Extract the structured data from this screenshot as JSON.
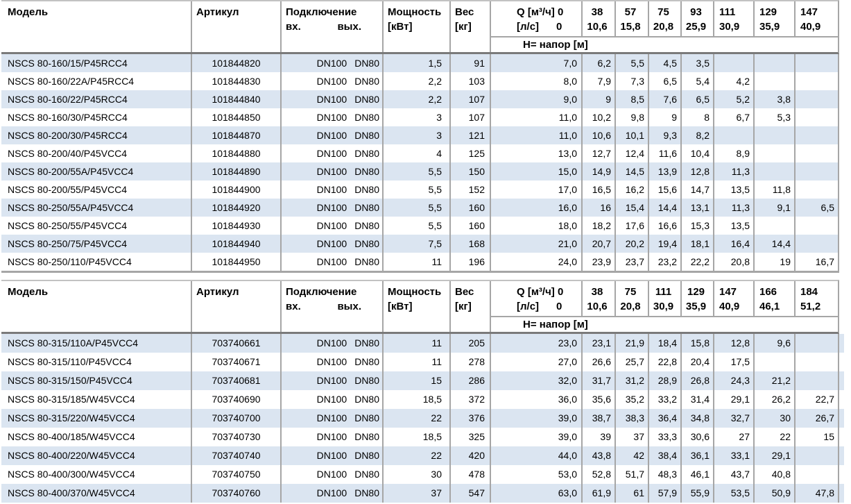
{
  "colors": {
    "stripe_row": "#dbe5f1",
    "grid_line": "#a6a6a6",
    "header_rule": "#7a7a7a",
    "text": "#000000",
    "background": "#ffffff"
  },
  "tables": [
    {
      "columns": {
        "model": "Модель",
        "article": "Артикул",
        "connection": "Подключение",
        "connection_in": "вх.",
        "connection_out": "вых.",
        "power_line1": "Мощность",
        "power_line2": "[кВт]",
        "weight_line1": "Вес",
        "weight_line2": "[кг]",
        "q_line1": "Q [м³/ч] 0",
        "q_line2": "[л/с]      0",
        "head_label": "H= напор [м]"
      },
      "flow_headers": [
        [
          "38",
          "10,6"
        ],
        [
          "57",
          "15,8"
        ],
        [
          "75",
          "20,8"
        ],
        [
          "93",
          "25,9"
        ],
        [
          "111",
          "30,9"
        ],
        [
          "129",
          "35,9"
        ],
        [
          "147",
          "40,9"
        ]
      ],
      "rows": [
        {
          "model": "NSCS 80-160/15/P45RCC4",
          "article": "101844820",
          "inlet": "DN100",
          "outlet": "DN80",
          "power": "1,5",
          "weight": "91",
          "head": [
            "7,0",
            "6,2",
            "5,5",
            "4,5",
            "3,5",
            "",
            "",
            ""
          ]
        },
        {
          "model": "NSCS 80-160/22A/P45RCC4",
          "article": "101844830",
          "inlet": "DN100",
          "outlet": "DN80",
          "power": "2,2",
          "weight": "103",
          "head": [
            "8,0",
            "7,9",
            "7,3",
            "6,5",
            "5,4",
            "4,2",
            "",
            ""
          ]
        },
        {
          "model": "NSCS 80-160/22/P45RCC4",
          "article": "101844840",
          "inlet": "DN100",
          "outlet": "DN80",
          "power": "2,2",
          "weight": "107",
          "head": [
            "9,0",
            "9",
            "8,5",
            "7,6",
            "6,5",
            "5,2",
            "3,8",
            ""
          ]
        },
        {
          "model": "NSCS 80-160/30/P45RCC4",
          "article": "101844850",
          "inlet": "DN100",
          "outlet": "DN80",
          "power": "3",
          "weight": "107",
          "head": [
            "11,0",
            "10,2",
            "9,8",
            "9",
            "8",
            "6,7",
            "5,3",
            ""
          ]
        },
        {
          "model": "NSCS 80-200/30/P45RCC4",
          "article": "101844870",
          "inlet": "DN100",
          "outlet": "DN80",
          "power": "3",
          "weight": "121",
          "head": [
            "11,0",
            "10,6",
            "10,1",
            "9,3",
            "8,2",
            "",
            "",
            ""
          ]
        },
        {
          "model": "NSCS 80-200/40/P45VCC4",
          "article": "101844880",
          "inlet": "DN100",
          "outlet": "DN80",
          "power": "4",
          "weight": "125",
          "head": [
            "13,0",
            "12,7",
            "12,4",
            "11,6",
            "10,4",
            "8,9",
            "",
            ""
          ]
        },
        {
          "model": "NSCS 80-200/55A/P45VCC4",
          "article": "101844890",
          "inlet": "DN100",
          "outlet": "DN80",
          "power": "5,5",
          "weight": "150",
          "head": [
            "15,0",
            "14,9",
            "14,5",
            "13,9",
            "12,8",
            "11,3",
            "",
            ""
          ]
        },
        {
          "model": "NSCS 80-200/55/P45VCC4",
          "article": "101844900",
          "inlet": "DN100",
          "outlet": "DN80",
          "power": "5,5",
          "weight": "152",
          "head": [
            "17,0",
            "16,5",
            "16,2",
            "15,6",
            "14,7",
            "13,5",
            "11,8",
            ""
          ]
        },
        {
          "model": "NSCS 80-250/55A/P45VCC4",
          "article": "101844920",
          "inlet": "DN100",
          "outlet": "DN80",
          "power": "5,5",
          "weight": "160",
          "head": [
            "16,0",
            "16",
            "15,4",
            "14,4",
            "13,1",
            "11,3",
            "9,1",
            "6,5"
          ]
        },
        {
          "model": "NSCS 80-250/55/P45VCC4",
          "article": "101844930",
          "inlet": "DN100",
          "outlet": "DN80",
          "power": "5,5",
          "weight": "160",
          "head": [
            "18,0",
            "18,2",
            "17,6",
            "16,6",
            "15,3",
            "13,5",
            "",
            ""
          ]
        },
        {
          "model": "NSCS 80-250/75/P45VCC4",
          "article": "101844940",
          "inlet": "DN100",
          "outlet": "DN80",
          "power": "7,5",
          "weight": "168",
          "head": [
            "21,0",
            "20,7",
            "20,2",
            "19,4",
            "18,1",
            "16,4",
            "14,4",
            ""
          ]
        },
        {
          "model": "NSCS 80-250/110/P45VCC4",
          "article": "101844950",
          "inlet": "DN100",
          "outlet": "DN80",
          "power": "11",
          "weight": "196",
          "head": [
            "24,0",
            "23,9",
            "23,7",
            "23,2",
            "22,2",
            "20,8",
            "19",
            "16,7"
          ]
        }
      ]
    },
    {
      "columns": {
        "model": "Модель",
        "article": "Артикул",
        "connection": "Подключение",
        "connection_in": "вх.",
        "connection_out": "вых.",
        "power_line1": "Мощность",
        "power_line2": "[кВт]",
        "weight_line1": "Вес",
        "weight_line2": "[кг]",
        "q_line1": "Q [м³/ч] 0",
        "q_line2": "[л/с]      0",
        "head_label": "H= напор [м]"
      },
      "flow_headers": [
        [
          "38",
          "10,6"
        ],
        [
          "75",
          "20,8"
        ],
        [
          "111",
          "30,9"
        ],
        [
          "129",
          "35,9"
        ],
        [
          "147",
          "40,9"
        ],
        [
          "166",
          "46,1"
        ],
        [
          "184",
          "51,2"
        ]
      ],
      "rows": [
        {
          "model": "NSCS 80-315/110A/P45VCC4",
          "article": "703740661",
          "inlet": "DN100",
          "outlet": "DN80",
          "power": "11",
          "weight": "205",
          "head": [
            "23,0",
            "23,1",
            "21,9",
            "18,4",
            "15,8",
            "12,8",
            "9,6",
            ""
          ]
        },
        {
          "model": "NSCS 80-315/110/P45VCC4",
          "article": "703740671",
          "inlet": "DN100",
          "outlet": "DN80",
          "power": "11",
          "weight": "278",
          "head": [
            "27,0",
            "26,6",
            "25,7",
            "22,8",
            "20,4",
            "17,5",
            "",
            ""
          ]
        },
        {
          "model": "NSCS 80-315/150/P45VCC4",
          "article": "703740681",
          "inlet": "DN100",
          "outlet": "DN80",
          "power": "15",
          "weight": "286",
          "head": [
            "32,0",
            "31,7",
            "31,2",
            "28,9",
            "26,8",
            "24,3",
            "21,2",
            ""
          ]
        },
        {
          "model": "NSCS 80-315/185/W45VCC4",
          "article": "703740690",
          "inlet": "DN100",
          "outlet": "DN80",
          "power": "18,5",
          "weight": "372",
          "head": [
            "36,0",
            "35,6",
            "35,2",
            "33,2",
            "31,4",
            "29,1",
            "26,2",
            "22,7"
          ]
        },
        {
          "model": "NSCS 80-315/220/W45VCC4",
          "article": "703740700",
          "inlet": "DN100",
          "outlet": "DN80",
          "power": "22",
          "weight": "376",
          "head": [
            "39,0",
            "38,7",
            "38,3",
            "36,4",
            "34,8",
            "32,7",
            "30",
            "26,7"
          ]
        },
        {
          "model": "NSCS 80-400/185/W45VCC4",
          "article": "703740730",
          "inlet": "DN100",
          "outlet": "DN80",
          "power": "18,5",
          "weight": "325",
          "head": [
            "39,0",
            "39",
            "37",
            "33,3",
            "30,6",
            "27",
            "22",
            "15"
          ]
        },
        {
          "model": "NSCS 80-400/220/W45VCC4",
          "article": "703740740",
          "inlet": "DN100",
          "outlet": "DN80",
          "power": "22",
          "weight": "420",
          "head": [
            "44,0",
            "43,8",
            "42",
            "38,4",
            "36,1",
            "33,1",
            "29,1",
            ""
          ]
        },
        {
          "model": "NSCS 80-400/300/W45VCC4",
          "article": "703740750",
          "inlet": "DN100",
          "outlet": "DN80",
          "power": "30",
          "weight": "478",
          "head": [
            "53,0",
            "52,8",
            "51,7",
            "48,3",
            "46,1",
            "43,7",
            "40,8",
            ""
          ]
        },
        {
          "model": "NSCS 80-400/370/W45VCC4",
          "article": "703740760",
          "inlet": "DN100",
          "outlet": "DN80",
          "power": "37",
          "weight": "547",
          "head": [
            "63,0",
            "61,9",
            "61",
            "57,9",
            "55,9",
            "53,5",
            "50,9",
            "47,8"
          ]
        }
      ]
    }
  ]
}
